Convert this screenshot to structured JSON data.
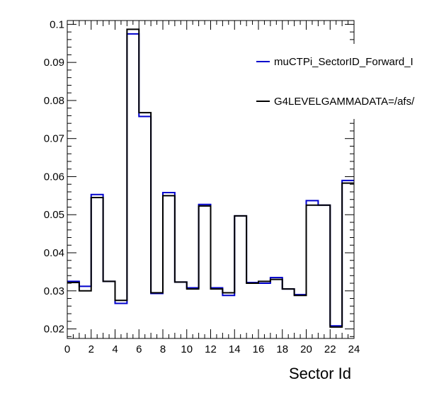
{
  "chart_data": {
    "type": "histogram",
    "title": "",
    "xlabel": "Sector Id",
    "ylabel": "",
    "xlim": [
      0,
      24
    ],
    "ylim": [
      0.0175,
      0.101
    ],
    "x_ticks": [
      0,
      2,
      4,
      6,
      8,
      10,
      12,
      14,
      16,
      18,
      20,
      22,
      24
    ],
    "y_ticks": [
      0.02,
      0.03,
      0.04,
      0.05,
      0.06,
      0.07,
      0.08,
      0.09,
      0.1
    ],
    "bin_edges": [
      0,
      1,
      2,
      3,
      4,
      5,
      6,
      7,
      8,
      9,
      10,
      11,
      12,
      13,
      14,
      15,
      16,
      17,
      18,
      19,
      20,
      21,
      22,
      23,
      24
    ],
    "grid": false,
    "legend_position": "top-right",
    "series": [
      {
        "name": "muCTPi_SectorID_Forward_I",
        "color": "#0000cc",
        "values": [
          0.0325,
          0.0312,
          0.0553,
          0.0325,
          0.0267,
          0.0975,
          0.0758,
          0.0293,
          0.0558,
          0.0323,
          0.0308,
          0.0527,
          0.0308,
          0.0288,
          0.0497,
          0.0322,
          0.032,
          0.0335,
          0.0305,
          0.029,
          0.0537,
          0.0525,
          0.0208,
          0.059
        ]
      },
      {
        "name": "G4LEVELGAMMADATA=/afs/",
        "color": "#000000",
        "values": [
          0.0322,
          0.03,
          0.0545,
          0.0325,
          0.0275,
          0.0987,
          0.0768,
          0.0295,
          0.055,
          0.0323,
          0.0305,
          0.0523,
          0.0305,
          0.0295,
          0.0497,
          0.032,
          0.0325,
          0.033,
          0.0305,
          0.0288,
          0.0525,
          0.0525,
          0.0205,
          0.0583
        ]
      }
    ]
  }
}
